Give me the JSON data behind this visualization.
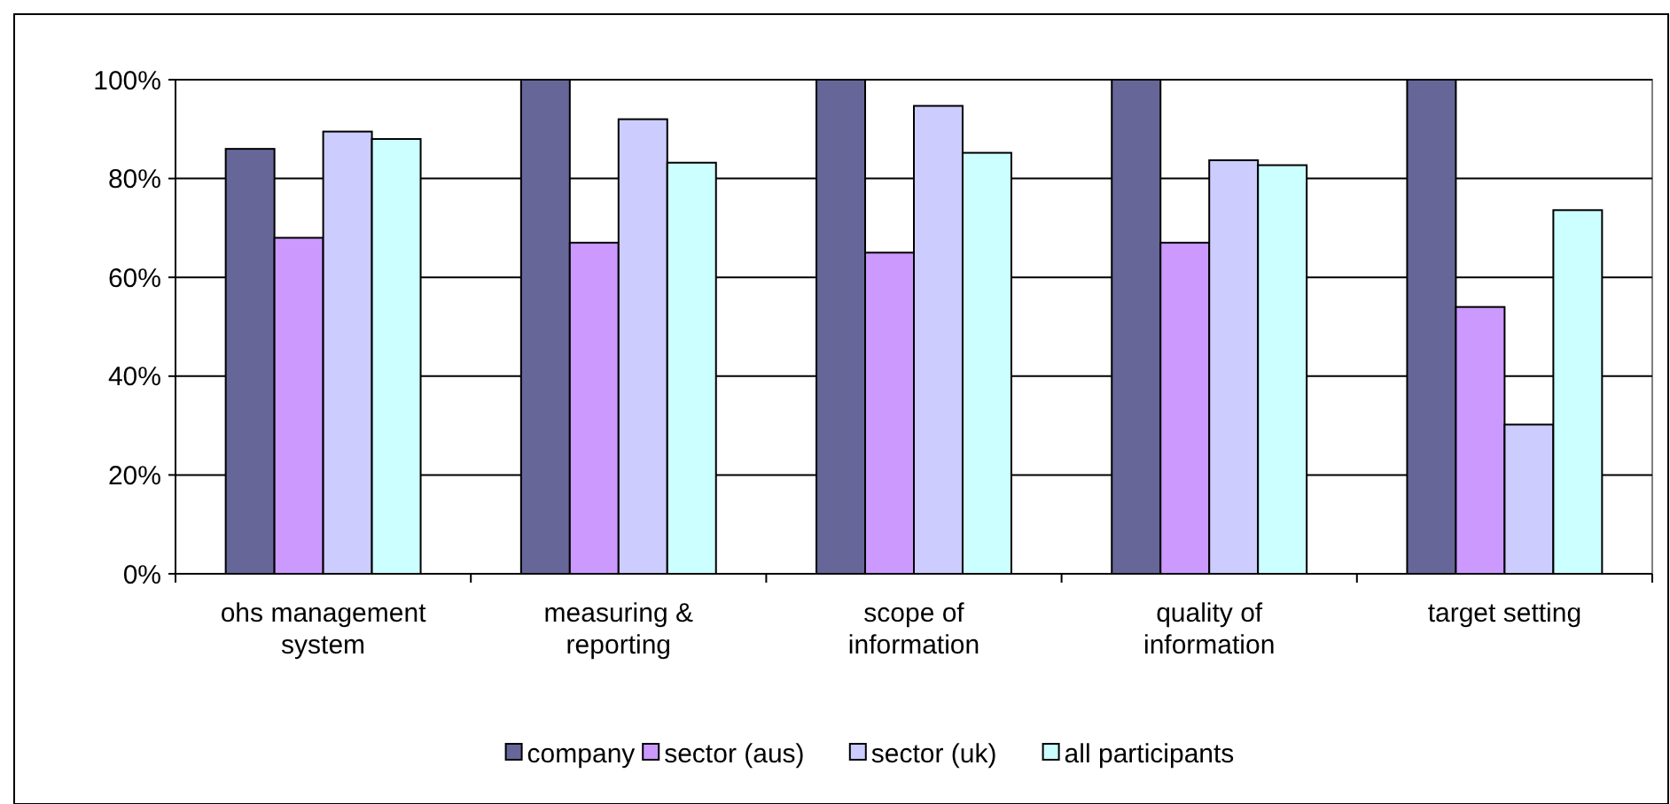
{
  "chart_data": {
    "type": "bar",
    "categories": [
      "ohs management system",
      "measuring & reporting",
      "scope of information",
      "quality of information",
      "target setting"
    ],
    "series": [
      {
        "name": "company",
        "color": "#666699",
        "values": [
          86,
          100,
          100,
          100,
          100
        ]
      },
      {
        "name": "sector (aus)",
        "color": "#cc99ff",
        "values": [
          68,
          67,
          65,
          67,
          54
        ]
      },
      {
        "name": "sector (uk)",
        "color": "#ccccff",
        "values": [
          89.5,
          92,
          94.7,
          83.7,
          30.2
        ]
      },
      {
        "name": "all participants",
        "color": "#ccffff",
        "values": [
          88,
          83.2,
          85.2,
          82.7,
          73.6
        ]
      }
    ],
    "ylim": [
      0,
      100
    ],
    "yticks": [
      {
        "value": 0,
        "label": "0%"
      },
      {
        "value": 20,
        "label": "20%"
      },
      {
        "value": 40,
        "label": "40%"
      },
      {
        "value": 60,
        "label": "60%"
      },
      {
        "value": 80,
        "label": "80%"
      },
      {
        "value": 100,
        "label": "100%"
      }
    ],
    "grid": "y",
    "legend": "bottom"
  }
}
